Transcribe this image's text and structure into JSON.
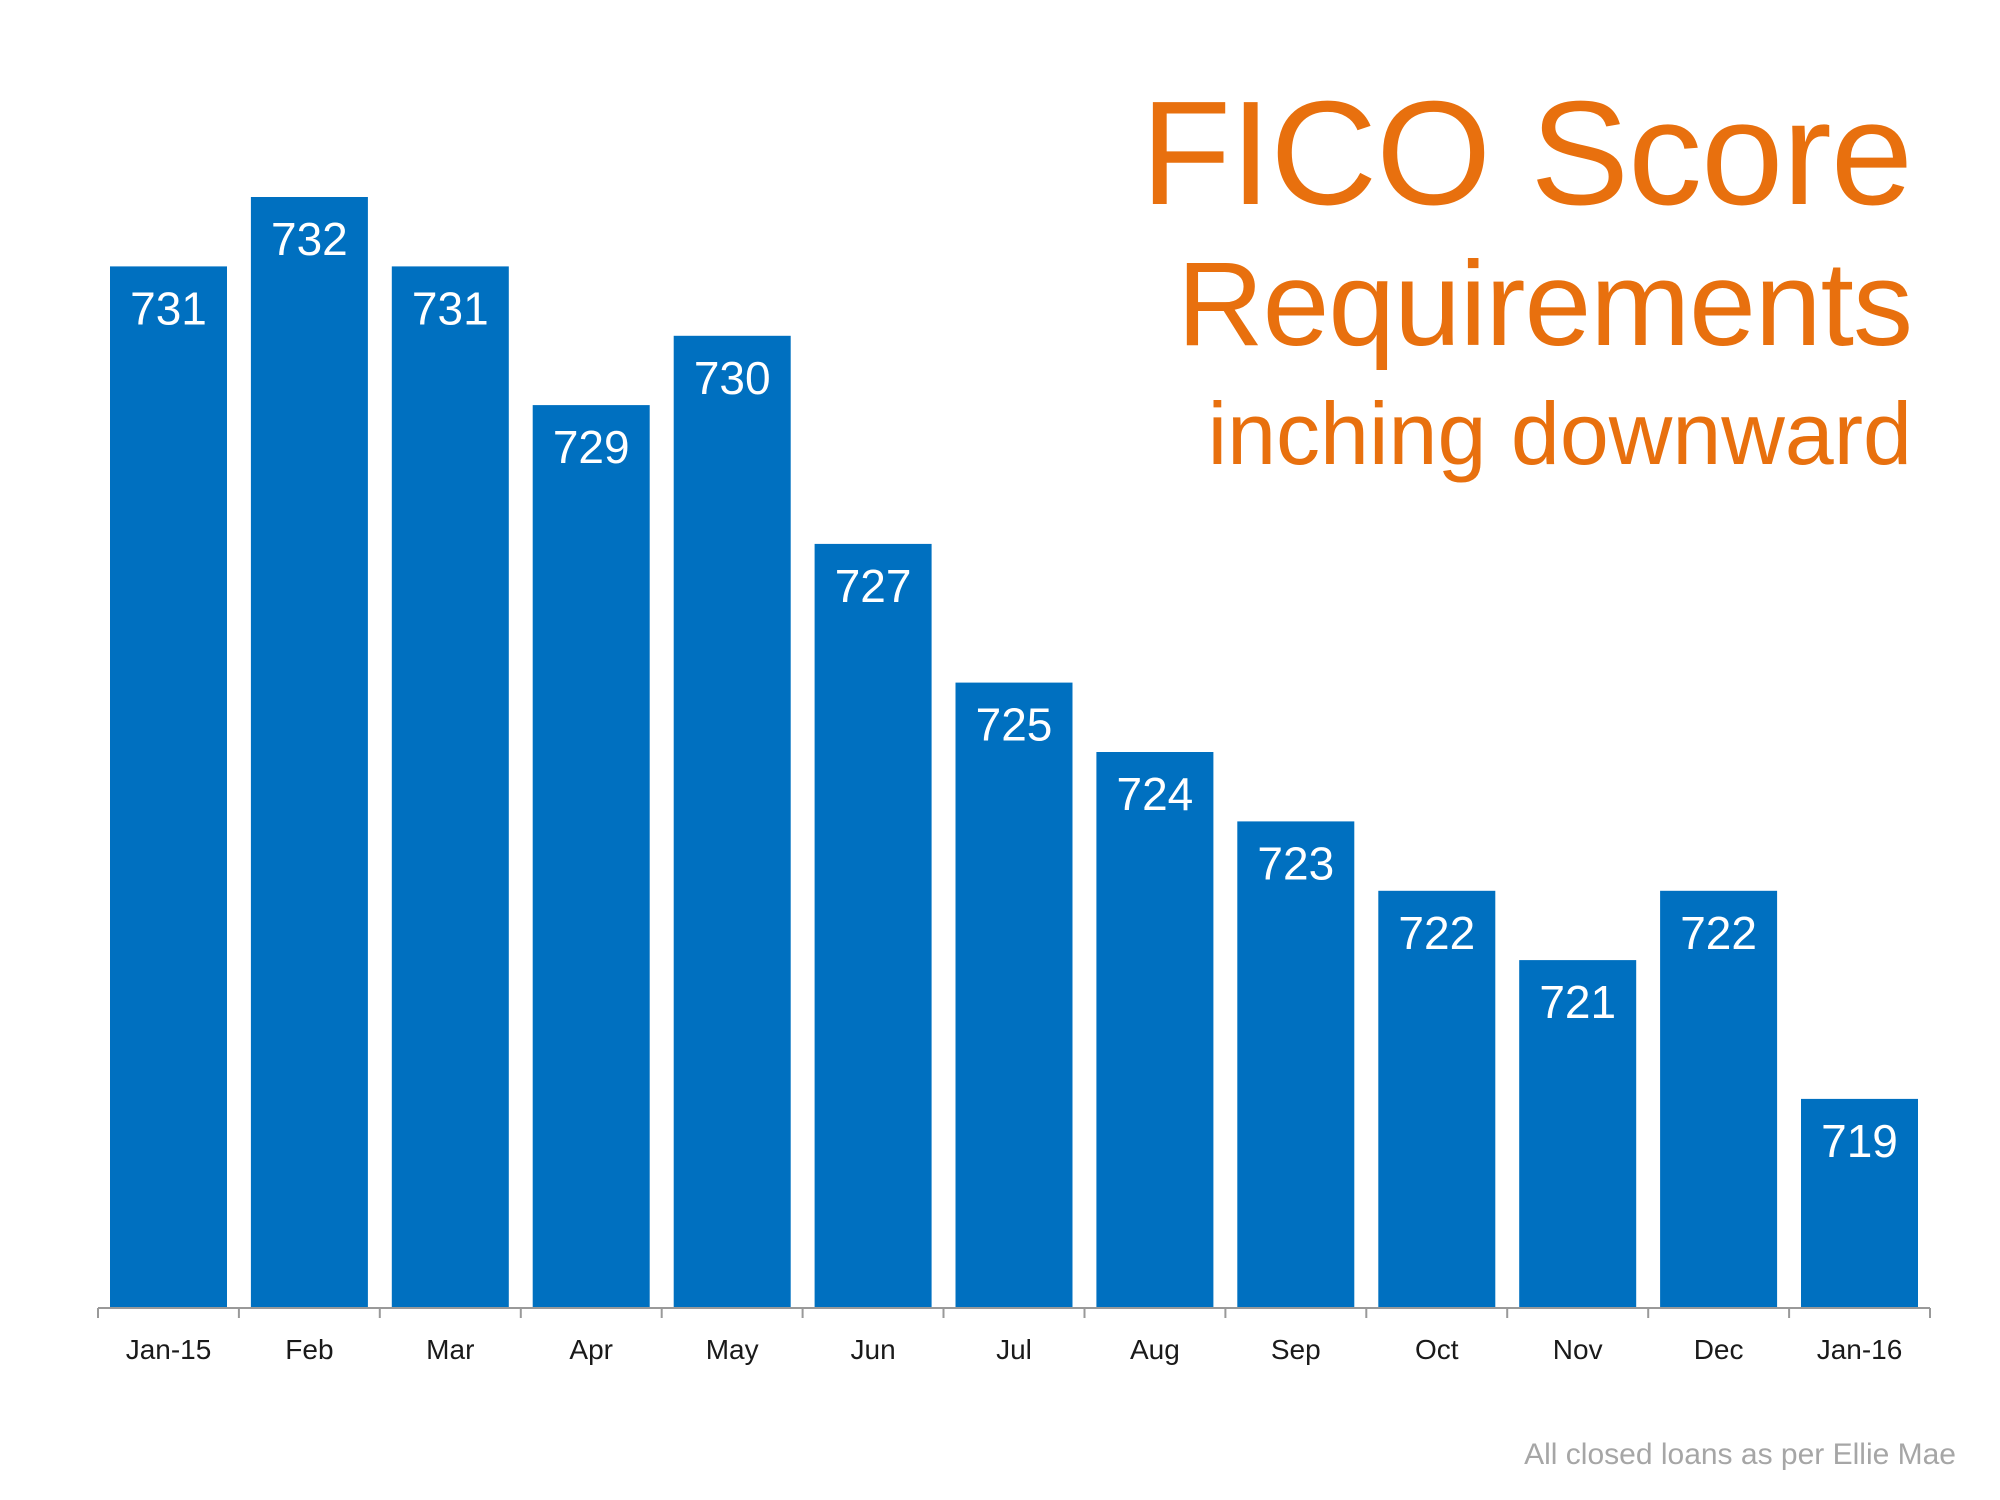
{
  "title": {
    "line1": "FICO Score",
    "line2": "Requirements",
    "line3": "inching downward"
  },
  "source_note": "All closed loans as per Ellie Mae",
  "colors": {
    "bar": "#0070c0",
    "title": "#e8700e",
    "axis": "#999999",
    "note": "#a6a6a6"
  },
  "chart_data": {
    "type": "bar",
    "categories": [
      "Jan-15",
      "Feb",
      "Mar",
      "Apr",
      "May",
      "Jun",
      "Jul",
      "Aug",
      "Sep",
      "Oct",
      "Nov",
      "Dec",
      "Jan-16"
    ],
    "values": [
      731,
      732,
      731,
      729,
      730,
      727,
      725,
      724,
      723,
      722,
      721,
      722,
      719
    ],
    "data_labels": [
      "731",
      "732",
      "731",
      "729",
      "730",
      "727",
      "725",
      "724",
      "723",
      "722",
      "721",
      "722",
      "719"
    ],
    "xlabel": "",
    "ylabel": "",
    "ylim": [
      716,
      732
    ],
    "grid": false,
    "legend": "none"
  }
}
